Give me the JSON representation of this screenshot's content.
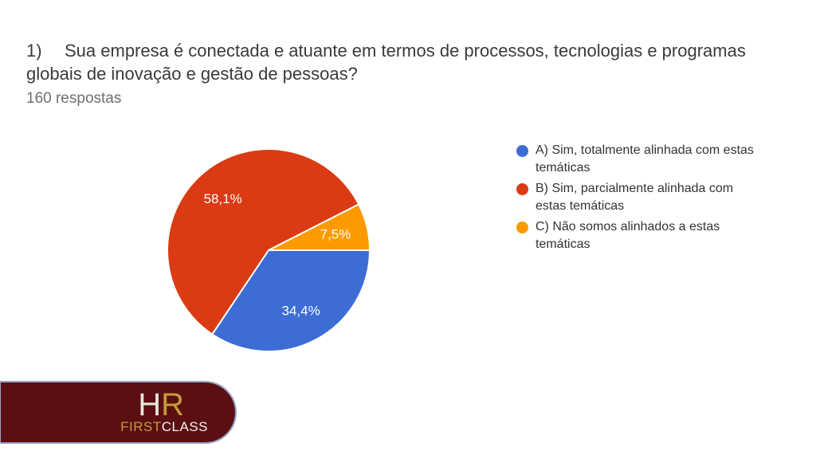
{
  "header": {
    "question_number": "1)",
    "question_text": "Sua empresa é conectada e atuante em termos de processos, tecnologias e programas globais de inovação e gestão de pessoas?",
    "responses_count": "160 respostas"
  },
  "chart_data": {
    "type": "pie",
    "title": "",
    "labels": [
      "A) Sim, totalmente alinhada com estas temáticas",
      "B) Sim, parcialmente alinhada com estas temáticas",
      "C) Não somos alinhados a estas temáticas"
    ],
    "values": [
      34.4,
      58.1,
      7.5
    ],
    "display_values": [
      "34,4%",
      "58,1%",
      "7,5%"
    ],
    "colors": [
      "#3d6cd5",
      "#da3b14",
      "#fd9a00"
    ],
    "start_angle_deg": 90,
    "direction": "clockwise",
    "legend_position": "right",
    "slice_label_color": "#ffffff",
    "slice_separator_color": "#ffffff"
  },
  "logo": {
    "hr_h": "H",
    "hr_r": "R",
    "first": "FIRST",
    "class": "CLASS",
    "background": "#5b0f12",
    "border_color": "#9aa5c8",
    "gold": "#c49b3b",
    "silver": "#e9e6df",
    "white": "#f5f3ef"
  }
}
